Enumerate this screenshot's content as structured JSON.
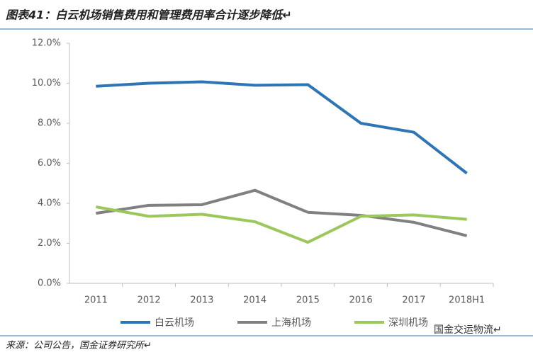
{
  "chart_data": {
    "type": "line",
    "title": "图表41：白云机场销售费用和管理费用率合计逐步降低↵",
    "source": "来源：公司公告，国金证券研究所↵",
    "watermark": "国金交运物流↵",
    "categories": [
      "2011",
      "2012",
      "2013",
      "2014",
      "2015",
      "2016",
      "2017",
      "2018H1"
    ],
    "series": [
      {
        "name": "白云机场",
        "color": "#2e75b6",
        "values": [
          9.85,
          10.0,
          10.07,
          9.9,
          9.93,
          8.0,
          7.55,
          5.5
        ]
      },
      {
        "name": "上海机场",
        "color": "#808080",
        "values": [
          3.5,
          3.9,
          3.93,
          4.65,
          3.55,
          3.4,
          3.05,
          2.38
        ]
      },
      {
        "name": "深圳机场",
        "color": "#9bc75b",
        "values": [
          3.82,
          3.35,
          3.45,
          3.08,
          2.05,
          3.35,
          3.42,
          3.2
        ]
      }
    ],
    "ylim": [
      0,
      12
    ],
    "yticks": [
      {
        "value": 0,
        "label": "0.0%"
      },
      {
        "value": 2,
        "label": "2.0%"
      },
      {
        "value": 4,
        "label": "4.0%"
      },
      {
        "value": 6,
        "label": "6.0%"
      },
      {
        "value": 8,
        "label": "8.0%"
      },
      {
        "value": 10,
        "label": "10.0%"
      },
      {
        "value": 12,
        "label": "12.0%"
      }
    ],
    "legend": "bottom"
  }
}
